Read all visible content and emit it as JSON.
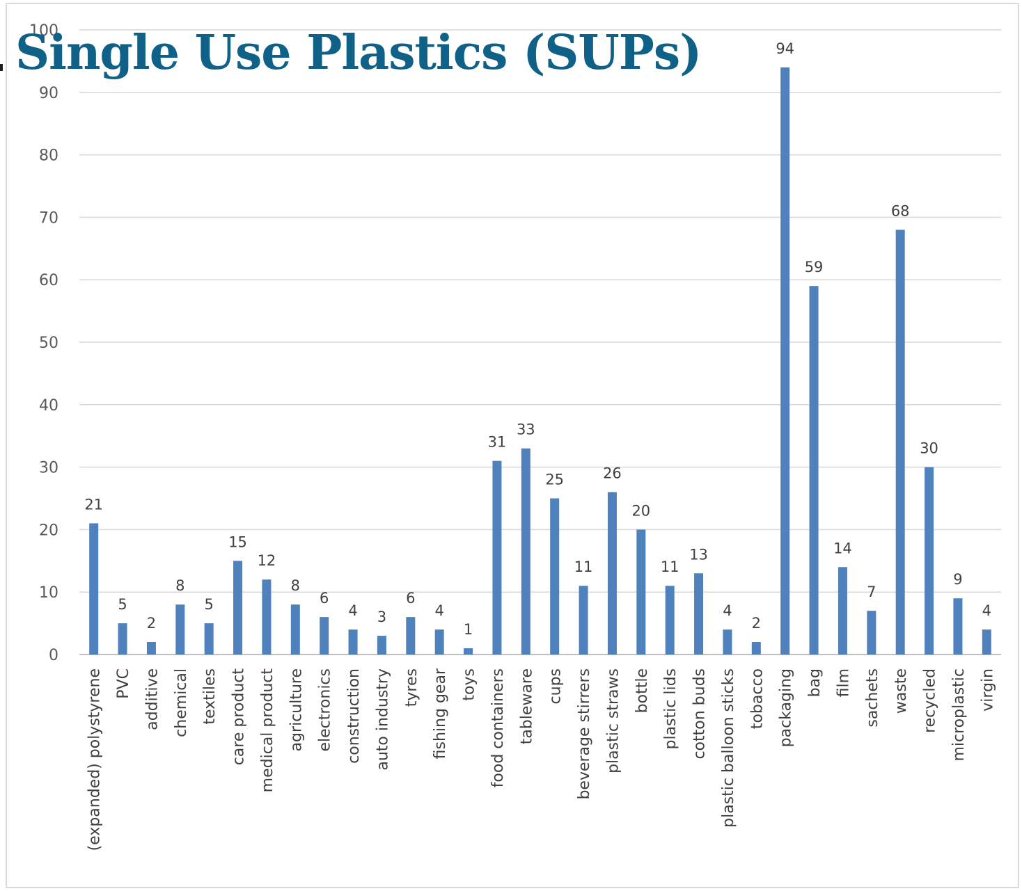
{
  "chart_data": {
    "type": "bar",
    "title": "Single Use Plastics (SUPs)",
    "xlabel": "",
    "ylabel": "",
    "ylim": [
      0,
      100
    ],
    "yticks": [
      0,
      10,
      20,
      30,
      40,
      50,
      60,
      70,
      80,
      90,
      100
    ],
    "grid": true,
    "legend": "none",
    "bar_color": "#4f81bd",
    "title_color": "#0f6188",
    "categories": [
      "(expanded) polystyrene",
      "PVC",
      "additive",
      "chemical",
      "textiles",
      "care product",
      "medical product",
      "agriculture",
      "electronics",
      "construction",
      "auto industry",
      "tyres",
      "fishing gear",
      "toys",
      "food containers",
      "tableware",
      "cups",
      "beverage stirrers",
      "plastic straws",
      "bottle",
      "plastic lids",
      "cotton buds",
      "plastic balloon sticks",
      "tobacco",
      "packaging",
      "bag",
      "film",
      "sachets",
      "waste",
      "recycled",
      "microplastic",
      "virgin"
    ],
    "values": [
      21,
      5,
      2,
      8,
      5,
      15,
      12,
      8,
      6,
      4,
      3,
      6,
      4,
      1,
      31,
      33,
      25,
      11,
      26,
      20,
      11,
      13,
      4,
      2,
      94,
      59,
      14,
      7,
      68,
      30,
      9,
      4
    ]
  }
}
